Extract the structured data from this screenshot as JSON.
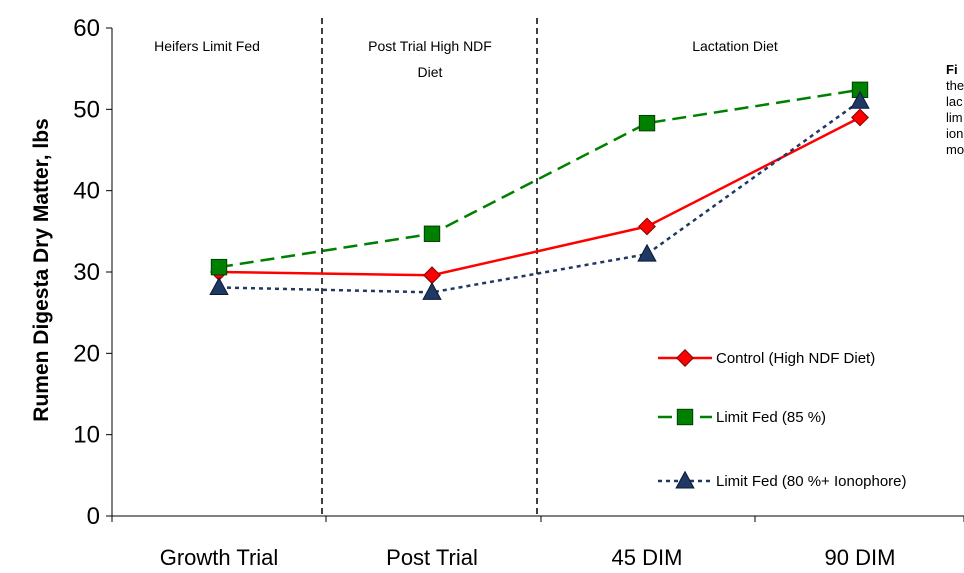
{
  "chart_data": {
    "type": "line",
    "ylabel": "Rumen Digesta Dry Matter, lbs",
    "xlabel": "",
    "ylim": [
      0,
      60
    ],
    "yticks": [
      "0",
      "10",
      "20",
      "30",
      "40",
      "50",
      "60"
    ],
    "categories": [
      "Growth Trial",
      "Post Trial",
      "45 DIM",
      "90 DIM"
    ],
    "phases": [
      "Heifers Limit Fed",
      "Post Trial High NDF Diet",
      "Lactation Diet"
    ],
    "series": [
      {
        "name": "Control (High NDF Diet)",
        "values": [
          30.0,
          29.6,
          35.6,
          49.0
        ],
        "color": "#ff0000",
        "marker": "diamond",
        "dash": "solid"
      },
      {
        "name": "Limit Fed (85 %)",
        "values": [
          30.6,
          34.7,
          48.3,
          52.4
        ],
        "color": "#008000",
        "marker": "square",
        "dash": "dashed"
      },
      {
        "name": "Limit Fed (80 %+ Ionophore)",
        "values": [
          28.1,
          27.5,
          32.2,
          51.0
        ],
        "color": "#1f3864",
        "marker": "triangle",
        "dash": "dotted"
      }
    ],
    "legend_position": "lower-right",
    "grid": false
  },
  "caption_fragments": [
    "Fi",
    "the",
    "lac",
    "lim",
    "ion",
    "mo"
  ]
}
